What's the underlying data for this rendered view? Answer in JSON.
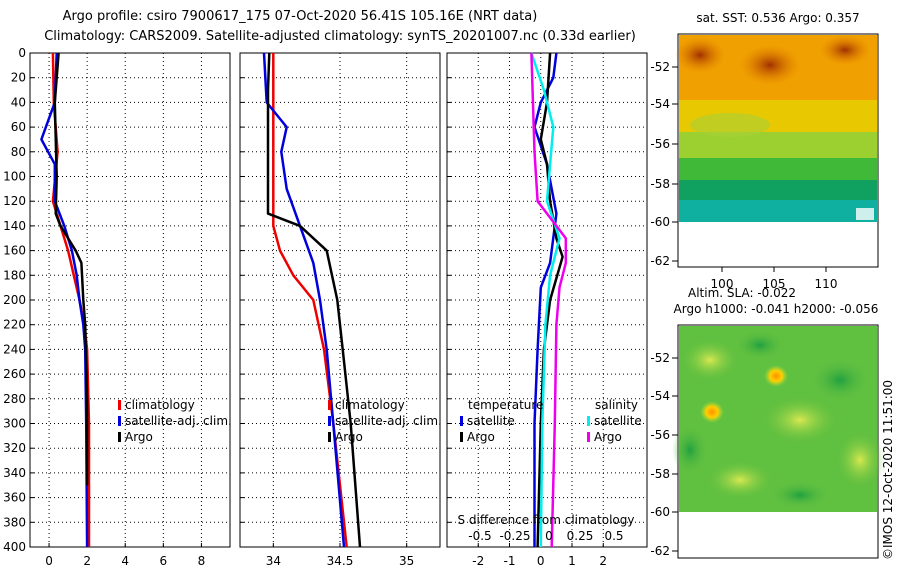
{
  "header": {
    "line1": "Argo profile: csiro 7900617_175 07-Oct-2020 56.41S 105.16E (NRT data)",
    "line2": "Climatology: CARS2009. Satellite-adjusted climatology: synTS_20201007.nc (0.33d earlier)"
  },
  "colors": {
    "climatology": "#ee0000",
    "satellite": "#0000dd",
    "argo": "#000000",
    "sal_satellite": "#00eeee",
    "sal_argo": "#ee00ee"
  },
  "chart_data": [
    {
      "id": "temperature",
      "type": "line",
      "xlim": [
        -1,
        9.5
      ],
      "ylim": [
        0,
        400
      ],
      "xticks": [
        0,
        2,
        4,
        6,
        8
      ],
      "xtick_labels": [
        "0",
        "2",
        "4",
        "6",
        "8"
      ],
      "ylabel_ticks": [
        0,
        20,
        40,
        60,
        80,
        100,
        120,
        140,
        160,
        180,
        200,
        220,
        240,
        260,
        280,
        300,
        320,
        340,
        360,
        380,
        400
      ],
      "series": [
        {
          "name": "climatology",
          "color": "#ee0000",
          "points": [
            [
              0.2,
              0
            ],
            [
              0.25,
              40
            ],
            [
              0.45,
              80
            ],
            [
              0.2,
              120
            ],
            [
              0.6,
              140
            ],
            [
              1.0,
              160
            ],
            [
              1.3,
              180
            ],
            [
              1.6,
              200
            ],
            [
              1.85,
              220
            ],
            [
              2.0,
              240
            ],
            [
              2.1,
              300
            ],
            [
              2.1,
              400
            ]
          ]
        },
        {
          "name": "satellite-adj. clim.",
          "color": "#0000dd",
          "points": [
            [
              0.4,
              0
            ],
            [
              0.3,
              40
            ],
            [
              -0.4,
              70
            ],
            [
              0.3,
              90
            ],
            [
              0.3,
              120
            ],
            [
              0.8,
              140
            ],
            [
              1.2,
              160
            ],
            [
              1.45,
              180
            ],
            [
              1.6,
              200
            ],
            [
              1.8,
              220
            ],
            [
              1.9,
              240
            ],
            [
              1.95,
              300
            ],
            [
              2.0,
              400
            ]
          ]
        },
        {
          "name": "Argo",
          "color": "#000000",
          "points": [
            [
              0.5,
              0
            ],
            [
              0.3,
              40
            ],
            [
              0.4,
              100
            ],
            [
              0.35,
              130
            ],
            [
              0.6,
              140
            ],
            [
              1.4,
              160
            ],
            [
              1.7,
              170
            ],
            [
              1.8,
              200
            ],
            [
              1.9,
              220
            ],
            [
              2.0,
              280
            ],
            [
              2.0,
              350
            ]
          ]
        }
      ],
      "legend": [
        "climatology",
        "satellite-adj. clim.",
        "Argo"
      ]
    },
    {
      "id": "salinity",
      "type": "line",
      "xlim": [
        33.75,
        35.25
      ],
      "ylim": [
        0,
        400
      ],
      "xticks": [
        34,
        34.5,
        35
      ],
      "xtick_labels": [
        "34",
        "34.5",
        "35"
      ],
      "series": [
        {
          "name": "climatology",
          "color": "#ee0000",
          "points": [
            [
              34.0,
              0
            ],
            [
              34.0,
              100
            ],
            [
              34.0,
              140
            ],
            [
              34.05,
              160
            ],
            [
              34.15,
              180
            ],
            [
              34.3,
              200
            ],
            [
              34.38,
              240
            ],
            [
              34.45,
              300
            ],
            [
              34.55,
              400
            ]
          ]
        },
        {
          "name": "satellite-adj. clim.",
          "color": "#0000dd",
          "points": [
            [
              33.93,
              0
            ],
            [
              33.95,
              40
            ],
            [
              34.1,
              60
            ],
            [
              34.06,
              80
            ],
            [
              34.1,
              110
            ],
            [
              34.2,
              140
            ],
            [
              34.3,
              170
            ],
            [
              34.35,
              200
            ],
            [
              34.4,
              240
            ],
            [
              34.45,
              300
            ],
            [
              34.53,
              400
            ]
          ]
        },
        {
          "name": "Argo",
          "color": "#000000",
          "points": [
            [
              33.97,
              0
            ],
            [
              33.96,
              30
            ],
            [
              33.96,
              130
            ],
            [
              34.2,
              140
            ],
            [
              34.4,
              160
            ],
            [
              34.48,
              200
            ],
            [
              34.52,
              240
            ],
            [
              34.58,
              300
            ],
            [
              34.65,
              400
            ]
          ]
        }
      ],
      "legend": [
        "climatology",
        "satellite-adj. clim.",
        "Argo"
      ]
    },
    {
      "id": "difference",
      "type": "line",
      "xlim": [
        -3,
        3.4
      ],
      "ylim": [
        0,
        400
      ],
      "xticks": [
        -2,
        -1,
        0,
        1,
        2
      ],
      "xtick_labels": [
        "-2",
        "-1",
        "0",
        "1",
        "2"
      ],
      "top_axis_label": "S difference from climatology",
      "top_ticks": [
        -0.5,
        -0.25,
        0,
        0.25,
        0.5
      ],
      "top_tick_labels": [
        "-0.5",
        "-0.25",
        "0",
        "0.25",
        "0.5"
      ],
      "series": [
        {
          "name": "temperature satellite",
          "color": "#0000dd",
          "points": [
            [
              0.5,
              0
            ],
            [
              0.4,
              20
            ],
            [
              0.0,
              40
            ],
            [
              -0.2,
              60
            ],
            [
              0.2,
              90
            ],
            [
              0.5,
              130
            ],
            [
              0.3,
              170
            ],
            [
              0.0,
              190
            ],
            [
              -0.1,
              240
            ],
            [
              -0.2,
              300
            ],
            [
              -0.2,
              400
            ]
          ]
        },
        {
          "name": "temperature Argo",
          "color": "#000000",
          "points": [
            [
              0.3,
              0
            ],
            [
              0.2,
              40
            ],
            [
              0.0,
              70
            ],
            [
              0.2,
              90
            ],
            [
              0.3,
              120
            ],
            [
              0.5,
              150
            ],
            [
              0.7,
              165
            ],
            [
              0.3,
              200
            ],
            [
              0.1,
              240
            ],
            [
              0.0,
              300
            ],
            [
              -0.1,
              400
            ]
          ]
        },
        {
          "name": "salinity satellite",
          "color": "#00eeee",
          "points": [
            [
              -0.3,
              0
            ],
            [
              0.1,
              30
            ],
            [
              0.4,
              60
            ],
            [
              0.3,
              90
            ],
            [
              0.2,
              120
            ],
            [
              0.6,
              150
            ],
            [
              0.3,
              180
            ],
            [
              0.15,
              220
            ],
            [
              0.05,
              300
            ],
            [
              0.0,
              400
            ]
          ]
        },
        {
          "name": "salinity Argo",
          "color": "#ee00ee",
          "points": [
            [
              -0.3,
              0
            ],
            [
              -0.2,
              80
            ],
            [
              -0.1,
              120
            ],
            [
              0.8,
              150
            ],
            [
              0.8,
              170
            ],
            [
              0.6,
              190
            ],
            [
              0.5,
              220
            ],
            [
              0.45,
              300
            ],
            [
              0.35,
              400
            ]
          ]
        }
      ],
      "legend_temperature_title": "temperature",
      "legend_salinity_title": "salinity",
      "legend_temperature": [
        "satellite",
        "Argo"
      ],
      "legend_salinity": [
        "satellite",
        "Argo"
      ]
    },
    {
      "id": "sst_map",
      "type": "heatmap",
      "title": "sat. SST: 0.536 Argo: 0.357",
      "xticks": [
        100,
        105,
        110
      ],
      "xtick_labels": [
        "100",
        "105",
        "110"
      ],
      "yticks": [
        -52,
        -54,
        -56,
        -58,
        -60,
        -62
      ],
      "ytick_labels": [
        "-52",
        "-54",
        "-56",
        "-58",
        "-60",
        "-62"
      ]
    },
    {
      "id": "sla_map",
      "type": "heatmap",
      "title1": "Altim. SLA: -0.022",
      "title2": "Argo h1000: -0.041 h2000: -0.056",
      "yticks": [
        -52,
        -54,
        -56,
        -58,
        -60,
        -62
      ],
      "ytick_labels": [
        "-52",
        "-54",
        "-56",
        "-58",
        "-60",
        "-62"
      ]
    }
  ],
  "footer": {
    "credit": "©IMOS 12-Oct-2020 11:51:00"
  }
}
